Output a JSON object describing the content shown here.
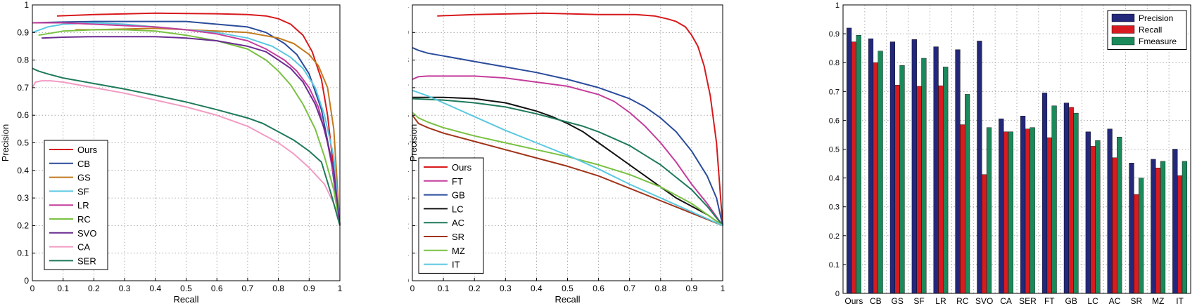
{
  "chart_data": [
    {
      "type": "line",
      "xlabel": "Recall",
      "ylabel": "Precision",
      "xlim": [
        0,
        1
      ],
      "ylim": [
        0,
        1
      ],
      "grid": true,
      "legend_position": "bottom-left",
      "xticks": [
        "0",
        "0.1",
        "0.2",
        "0.3",
        "0.4",
        "0.5",
        "0.6",
        "0.7",
        "0.8",
        "0.9",
        "1"
      ],
      "yticks": [
        "0",
        "0.1",
        "0.2",
        "0.3",
        "0.4",
        "0.5",
        "0.6",
        "0.7",
        "0.8",
        "0.9",
        "1"
      ],
      "series": [
        {
          "name": "Ours",
          "color": "#d7191c",
          "x": [
            0.08,
            0.2,
            0.4,
            0.6,
            0.7,
            0.76,
            0.8,
            0.84,
            0.88,
            0.91,
            0.94,
            0.96,
            0.98,
            1.0
          ],
          "y": [
            0.96,
            0.965,
            0.97,
            0.968,
            0.965,
            0.96,
            0.95,
            0.93,
            0.89,
            0.83,
            0.73,
            0.6,
            0.4,
            0.2
          ]
        },
        {
          "name": "CB",
          "color": "#2b4c9c",
          "x": [
            0.0,
            0.1,
            0.2,
            0.35,
            0.5,
            0.6,
            0.7,
            0.76,
            0.82,
            0.86,
            0.9,
            0.94,
            0.97,
            1.0
          ],
          "y": [
            0.935,
            0.938,
            0.94,
            0.94,
            0.94,
            0.93,
            0.92,
            0.9,
            0.86,
            0.82,
            0.75,
            0.62,
            0.45,
            0.2
          ]
        },
        {
          "name": "GS",
          "color": "#c27a1e",
          "x": [
            0.14,
            0.2,
            0.4,
            0.6,
            0.7,
            0.8,
            0.85,
            0.9,
            0.93,
            0.96,
            0.98,
            1.0
          ],
          "y": [
            0.91,
            0.91,
            0.915,
            0.905,
            0.9,
            0.88,
            0.86,
            0.82,
            0.78,
            0.7,
            0.55,
            0.2
          ]
        },
        {
          "name": "SF",
          "color": "#5bc8e0",
          "x": [
            0.0,
            0.05,
            0.1,
            0.2,
            0.3,
            0.4,
            0.5,
            0.6,
            0.7,
            0.78,
            0.84,
            0.88,
            0.92,
            0.95,
            0.98,
            1.0
          ],
          "y": [
            0.9,
            0.92,
            0.93,
            0.935,
            0.93,
            0.92,
            0.91,
            0.9,
            0.88,
            0.85,
            0.81,
            0.77,
            0.7,
            0.6,
            0.45,
            0.2
          ]
        },
        {
          "name": "LR",
          "color": "#c43d9b",
          "x": [
            0.0,
            0.1,
            0.2,
            0.3,
            0.4,
            0.5,
            0.6,
            0.7,
            0.76,
            0.82,
            0.86,
            0.9,
            0.93,
            0.96,
            0.98,
            1.0
          ],
          "y": [
            0.935,
            0.935,
            0.93,
            0.925,
            0.92,
            0.91,
            0.895,
            0.87,
            0.84,
            0.8,
            0.76,
            0.7,
            0.63,
            0.5,
            0.38,
            0.2
          ]
        },
        {
          "name": "RC",
          "color": "#79c142",
          "x": [
            0.02,
            0.1,
            0.2,
            0.3,
            0.4,
            0.5,
            0.6,
            0.7,
            0.76,
            0.8,
            0.84,
            0.88,
            0.92,
            0.95,
            0.98,
            1.0
          ],
          "y": [
            0.89,
            0.905,
            0.91,
            0.91,
            0.905,
            0.89,
            0.87,
            0.84,
            0.8,
            0.76,
            0.71,
            0.64,
            0.55,
            0.45,
            0.33,
            0.2
          ]
        },
        {
          "name": "SVO",
          "color": "#6a2c91",
          "x": [
            0.03,
            0.1,
            0.2,
            0.3,
            0.4,
            0.5,
            0.6,
            0.7,
            0.76,
            0.8,
            0.84,
            0.88,
            0.92,
            0.95,
            0.98,
            1.0
          ],
          "y": [
            0.88,
            0.883,
            0.885,
            0.885,
            0.885,
            0.88,
            0.87,
            0.85,
            0.83,
            0.8,
            0.77,
            0.72,
            0.64,
            0.55,
            0.4,
            0.2
          ]
        },
        {
          "name": "CA",
          "color": "#f29bc4",
          "x": [
            0.0,
            0.01,
            0.03,
            0.06,
            0.1,
            0.2,
            0.3,
            0.4,
            0.5,
            0.6,
            0.7,
            0.75,
            0.8,
            0.85,
            0.9,
            0.95,
            0.98,
            1.0
          ],
          "y": [
            0.7,
            0.72,
            0.725,
            0.725,
            0.72,
            0.7,
            0.68,
            0.655,
            0.63,
            0.6,
            0.56,
            0.53,
            0.5,
            0.46,
            0.41,
            0.35,
            0.28,
            0.2
          ]
        },
        {
          "name": "SER",
          "color": "#1e7a5a",
          "x": [
            0.0,
            0.02,
            0.05,
            0.1,
            0.2,
            0.3,
            0.4,
            0.5,
            0.6,
            0.7,
            0.75,
            0.8,
            0.85,
            0.9,
            0.94,
            0.97,
            1.0
          ],
          "y": [
            0.77,
            0.76,
            0.75,
            0.735,
            0.715,
            0.695,
            0.672,
            0.648,
            0.62,
            0.59,
            0.57,
            0.54,
            0.51,
            0.47,
            0.43,
            0.32,
            0.2
          ]
        }
      ]
    },
    {
      "type": "line",
      "xlabel": "Recall",
      "ylabel": "Precision",
      "xlim": [
        0,
        1
      ],
      "ylim": [
        0,
        1
      ],
      "grid": true,
      "legend_position": "bottom-left",
      "xticks": [
        "0",
        "0.1",
        "0.2",
        "0.3",
        "0.4",
        "0.5",
        "0.6",
        "0.7",
        "0.8",
        "0.9",
        "1"
      ],
      "yticks": [
        "0",
        "0.1",
        "0.2",
        "0.3",
        "0.4",
        "0.5",
        "0.6",
        "0.7",
        "0.8",
        "0.9",
        "1"
      ],
      "series": [
        {
          "name": "Ours",
          "color": "#d7191c",
          "x": [
            0.08,
            0.2,
            0.42,
            0.6,
            0.72,
            0.78,
            0.82,
            0.85,
            0.88,
            0.9,
            0.92,
            0.94,
            0.96,
            0.98,
            0.99,
            1.0
          ],
          "y": [
            0.96,
            0.965,
            0.97,
            0.965,
            0.965,
            0.96,
            0.95,
            0.94,
            0.92,
            0.89,
            0.85,
            0.78,
            0.67,
            0.5,
            0.35,
            0.2
          ]
        },
        {
          "name": "FT",
          "color": "#c43d9b",
          "x": [
            0.0,
            0.02,
            0.05,
            0.1,
            0.2,
            0.3,
            0.4,
            0.5,
            0.55,
            0.6,
            0.65,
            0.7,
            0.75,
            0.8,
            0.85,
            0.9,
            0.95,
            1.0
          ],
          "y": [
            0.73,
            0.74,
            0.742,
            0.742,
            0.742,
            0.735,
            0.72,
            0.705,
            0.69,
            0.675,
            0.65,
            0.61,
            0.56,
            0.5,
            0.43,
            0.35,
            0.28,
            0.2
          ]
        },
        {
          "name": "GB",
          "color": "#2b4c9c",
          "x": [
            0.0,
            0.02,
            0.05,
            0.1,
            0.2,
            0.3,
            0.4,
            0.5,
            0.6,
            0.7,
            0.75,
            0.8,
            0.85,
            0.9,
            0.95,
            0.98,
            1.0
          ],
          "y": [
            0.845,
            0.835,
            0.825,
            0.815,
            0.795,
            0.775,
            0.755,
            0.73,
            0.7,
            0.66,
            0.63,
            0.59,
            0.54,
            0.47,
            0.38,
            0.3,
            0.2
          ]
        },
        {
          "name": "LC",
          "color": "#111111",
          "x": [
            0.0,
            0.1,
            0.2,
            0.3,
            0.35,
            0.4,
            0.45,
            0.5,
            0.55,
            0.6,
            0.65,
            0.7,
            0.75,
            0.8,
            0.85,
            0.9,
            0.95,
            1.0
          ],
          "y": [
            0.665,
            0.665,
            0.66,
            0.645,
            0.63,
            0.615,
            0.595,
            0.57,
            0.54,
            0.5,
            0.46,
            0.42,
            0.38,
            0.34,
            0.3,
            0.27,
            0.24,
            0.2
          ]
        },
        {
          "name": "AC",
          "color": "#1e7a5a",
          "x": [
            0.0,
            0.1,
            0.2,
            0.3,
            0.4,
            0.5,
            0.55,
            0.6,
            0.65,
            0.7,
            0.75,
            0.8,
            0.85,
            0.9,
            0.95,
            1.0
          ],
          "y": [
            0.66,
            0.655,
            0.645,
            0.63,
            0.605,
            0.575,
            0.56,
            0.54,
            0.515,
            0.49,
            0.455,
            0.42,
            0.375,
            0.33,
            0.27,
            0.2
          ]
        },
        {
          "name": "SR",
          "color": "#a0341a",
          "x": [
            0.0,
            0.02,
            0.05,
            0.1,
            0.2,
            0.3,
            0.4,
            0.5,
            0.6,
            0.7,
            0.8,
            0.9,
            1.0
          ],
          "y": [
            0.6,
            0.57,
            0.555,
            0.535,
            0.505,
            0.475,
            0.445,
            0.415,
            0.38,
            0.335,
            0.29,
            0.245,
            0.2
          ]
        },
        {
          "name": "MZ",
          "color": "#79c142",
          "x": [
            0.0,
            0.02,
            0.05,
            0.1,
            0.2,
            0.3,
            0.4,
            0.5,
            0.6,
            0.7,
            0.8,
            0.9,
            1.0
          ],
          "y": [
            0.61,
            0.59,
            0.575,
            0.555,
            0.525,
            0.5,
            0.475,
            0.45,
            0.42,
            0.385,
            0.34,
            0.28,
            0.2
          ]
        },
        {
          "name": "IT",
          "color": "#5bc8e0",
          "x": [
            0.0,
            0.05,
            0.1,
            0.2,
            0.3,
            0.4,
            0.5,
            0.6,
            0.7,
            0.8,
            0.9,
            1.0
          ],
          "y": [
            0.69,
            0.67,
            0.645,
            0.595,
            0.545,
            0.5,
            0.455,
            0.405,
            0.35,
            0.3,
            0.25,
            0.2
          ]
        }
      ]
    },
    {
      "type": "bar",
      "xlabel": "",
      "ylabel": "",
      "ylim": [
        0,
        1
      ],
      "grid": true,
      "legend_position": "top-right",
      "yticks": [
        "0",
        "0.1",
        "0.2",
        "0.3",
        "0.4",
        "0.5",
        "0.6",
        "0.7",
        "0.8",
        "0.9",
        "1"
      ],
      "categories": [
        "Ours",
        "CB",
        "GS",
        "SF",
        "LR",
        "RC",
        "SVO",
        "CA",
        "SER",
        "FT",
        "GB",
        "LC",
        "AC",
        "SR",
        "MZ",
        "IT"
      ],
      "series": [
        {
          "name": "Precision",
          "color": "#24287a",
          "values": [
            0.92,
            0.883,
            0.872,
            0.88,
            0.855,
            0.845,
            0.875,
            0.605,
            0.615,
            0.695,
            0.66,
            0.56,
            0.57,
            0.452,
            0.465,
            0.5
          ]
        },
        {
          "name": "Recall",
          "color": "#d81b20",
          "values": [
            0.872,
            0.8,
            0.722,
            0.718,
            0.72,
            0.585,
            0.412,
            0.56,
            0.57,
            0.54,
            0.645,
            0.51,
            0.47,
            0.343,
            0.435,
            0.408
          ]
        },
        {
          "name": "Fmeasure",
          "color": "#1b8a5a",
          "values": [
            0.895,
            0.84,
            0.79,
            0.815,
            0.785,
            0.69,
            0.575,
            0.56,
            0.575,
            0.65,
            0.625,
            0.53,
            0.542,
            0.4,
            0.458,
            0.458
          ]
        }
      ]
    }
  ]
}
